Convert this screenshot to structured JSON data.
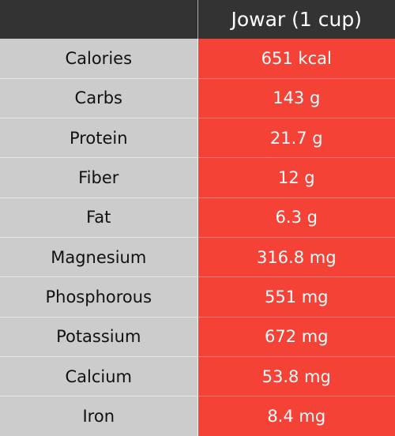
{
  "table": {
    "header": {
      "nutrient_column": "",
      "amount_column": "Jowar (1 cup)"
    },
    "rows": [
      {
        "nutrient": "Calories",
        "amount": "651 kcal"
      },
      {
        "nutrient": "Carbs",
        "amount": "143 g"
      },
      {
        "nutrient": "Protein",
        "amount": "21.7 g"
      },
      {
        "nutrient": "Fiber",
        "amount": "12 g"
      },
      {
        "nutrient": "Fat",
        "amount": "6.3 g"
      },
      {
        "nutrient": "Magnesium",
        "amount": "316.8 mg"
      },
      {
        "nutrient": "Phosphorous",
        "amount": "551 mg"
      },
      {
        "nutrient": "Potassium",
        "amount": "672 mg"
      },
      {
        "nutrient": "Calcium",
        "amount": "53.8 mg"
      },
      {
        "nutrient": "Iron",
        "amount": "8.4 mg"
      }
    ],
    "colors": {
      "header_bg": "#333333",
      "nutrient_bg": "#cccccc",
      "amount_bg": "#f44236"
    }
  }
}
